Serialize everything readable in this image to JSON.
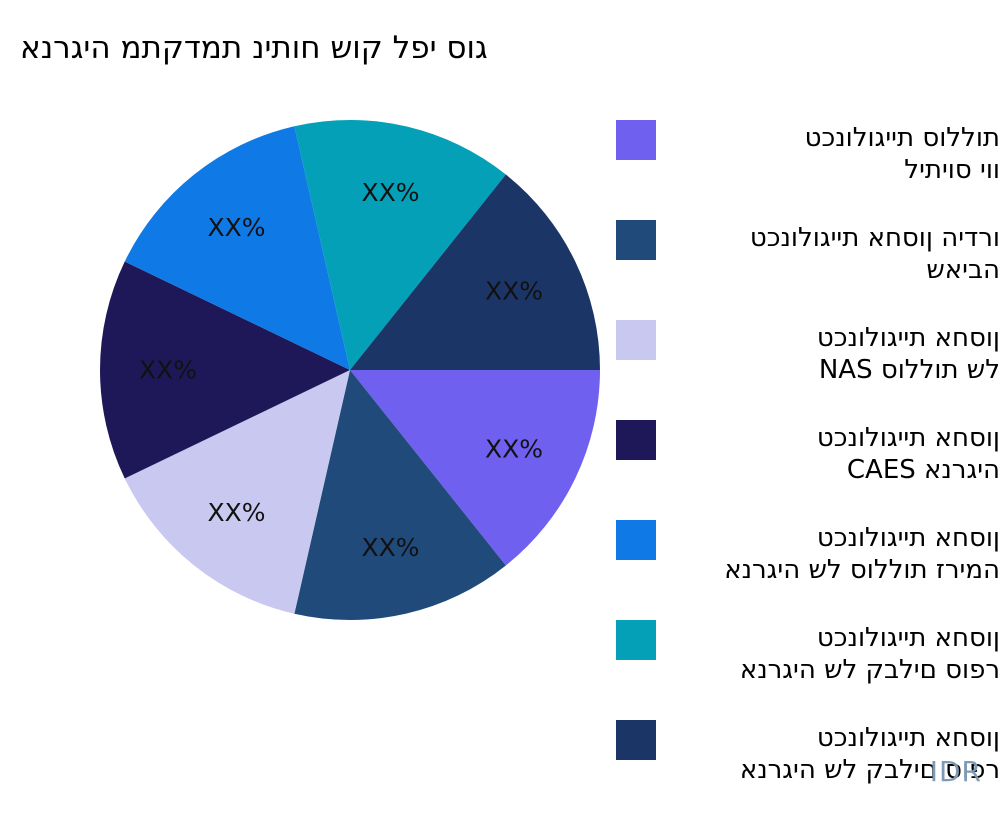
{
  "title": "גוס יפל קוש חותינ תמדקתמ היגרנא",
  "watermark": "IDR",
  "chart_data": {
    "type": "pie",
    "title": "גוס יפל קוש חותינ תמדקתמ היגרנא",
    "legend_position": "right",
    "slices": [
      {
        "name": "תוללוס תייגולונכט\nווי סויתיל",
        "value": 14.29,
        "label": "XX%",
        "color": "#7060f0"
      },
      {
        "name": "ורדיה ןוסחא תייגולונכט\nהביאש",
        "value": 14.29,
        "label": "XX%",
        "color": "#1f4a7a"
      },
      {
        "name": "ןוסחא תייגולונכט\nלש תוללוס NAS",
        "value": 14.29,
        "label": "XX%",
        "color": "#c8c8f0"
      },
      {
        "name": "ןוסחא תייגולונכט\nהיגרנא CAES",
        "value": 14.29,
        "label": "XX%",
        "color": "#1e1858"
      },
      {
        "name": "ןוסחא תייגולונכט\nהמירז תוללוס לש היגרנא",
        "value": 14.29,
        "label": "XX%",
        "color": "#0f7ae6"
      },
      {
        "name": "ןוסחא תייגולונכט\nרפוס םילבק לש היגרנא",
        "value": 14.29,
        "label": "XX%",
        "color": "#03a0b8"
      },
      {
        "name": "ןוסחא תייגולונכט\nרפוס םילבק לש היגרנא",
        "value": 14.29,
        "label": "XX%",
        "color": "#1c3567"
      }
    ]
  }
}
